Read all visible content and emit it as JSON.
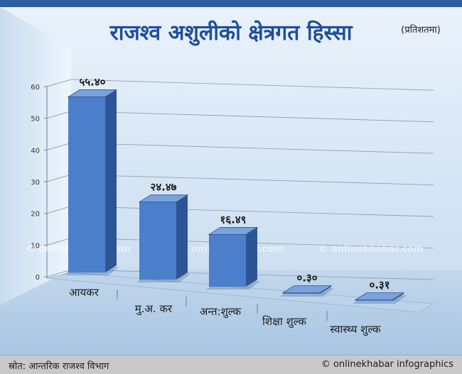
{
  "colors": {
    "top_strip": "#2b5f9e",
    "background_light": "#e6f0fb",
    "background_mid": "#c6dbef",
    "floor": "#b3cde6",
    "bar_front": "#4b7fcb",
    "bar_side": "#2d5596",
    "bar_top": "#7aa3dd",
    "title": "#1f4e9a",
    "label": "#1b1b1b"
  },
  "chart_data": {
    "type": "bar",
    "title": "राजश्व अशुलीको क्षेत्रगत हिस्सा",
    "subtitle": "(प्रतिशतमा)",
    "categories": [
      "आयकर",
      "मु.अ. कर",
      "अन्त:शुल्क",
      "शिक्षा शुल्क",
      "स्वास्थ्य शुल्क"
    ],
    "values": [
      55.4,
      24.47,
      16.49,
      0.3,
      0.31
    ],
    "data_labels": [
      "५५.४०",
      "२४.४७",
      "१६.४९",
      "०.३०",
      "०.३१"
    ],
    "ylim": [
      0,
      60
    ],
    "yticks": [
      0,
      10,
      20,
      30,
      40,
      50,
      60
    ],
    "ytick_labels": [
      "0",
      "10",
      "20",
      "30",
      "40",
      "50",
      "60"
    ],
    "grid": true,
    "legend": "none",
    "style": "3d"
  },
  "watermark": "© onlinekhabar.com",
  "footer": {
    "source": "स्रोत: आन्तरिक राजश्व विभाग",
    "credit": "© onlinekhabar infographics"
  }
}
